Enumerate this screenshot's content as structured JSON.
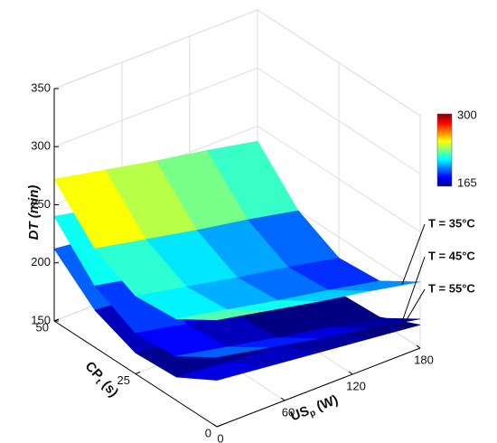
{
  "chart_data": {
    "type": "surface3d",
    "zlabel": "DT (min)",
    "xlabel": {
      "main": "US",
      "sub": "p",
      "unit": "(W)"
    },
    "ylabel": {
      "main": "CP",
      "sub": "t",
      "unit": "(s)"
    },
    "x": [
      0,
      45,
      90,
      135,
      180
    ],
    "y": [
      0,
      12.5,
      25,
      37.5,
      50
    ],
    "xlim": [
      0,
      180
    ],
    "xticks": [
      0,
      60,
      120,
      180
    ],
    "ylim": [
      0,
      50
    ],
    "yticks": [
      0,
      25,
      50
    ],
    "zlim": [
      150,
      350
    ],
    "zticks": [
      150,
      200,
      250,
      300,
      350
    ],
    "colorbar": {
      "min": 165,
      "max": 300,
      "colormap": "jet"
    },
    "grid": true,
    "series": [
      {
        "name": "T = 35°C",
        "values": [
          [
            242,
            233,
            224,
            216,
            207
          ],
          [
            220,
            211,
            202,
            194,
            185
          ],
          [
            217,
            208,
            199,
            191,
            182
          ],
          [
            235,
            226,
            217,
            209,
            200
          ],
          [
            272,
            263,
            254,
            246,
            237
          ]
        ]
      },
      {
        "name": "T = 45°C",
        "values": [
          [
            210,
            201,
            192,
            184,
            175
          ],
          [
            188,
            179,
            170,
            162,
            153
          ],
          [
            185,
            176,
            167,
            159,
            150
          ],
          [
            203,
            194,
            185,
            177,
            168
          ],
          [
            240,
            231,
            222,
            214,
            205
          ]
        ]
      },
      {
        "name": "T = 55°C",
        "values": [
          [
            190,
            185,
            180,
            175,
            170
          ],
          [
            170,
            166,
            162,
            158,
            154
          ],
          [
            168,
            164,
            160,
            156,
            152
          ],
          [
            182,
            178,
            174,
            170,
            166
          ],
          [
            212,
            207,
            202,
            197,
            192
          ]
        ]
      }
    ]
  }
}
